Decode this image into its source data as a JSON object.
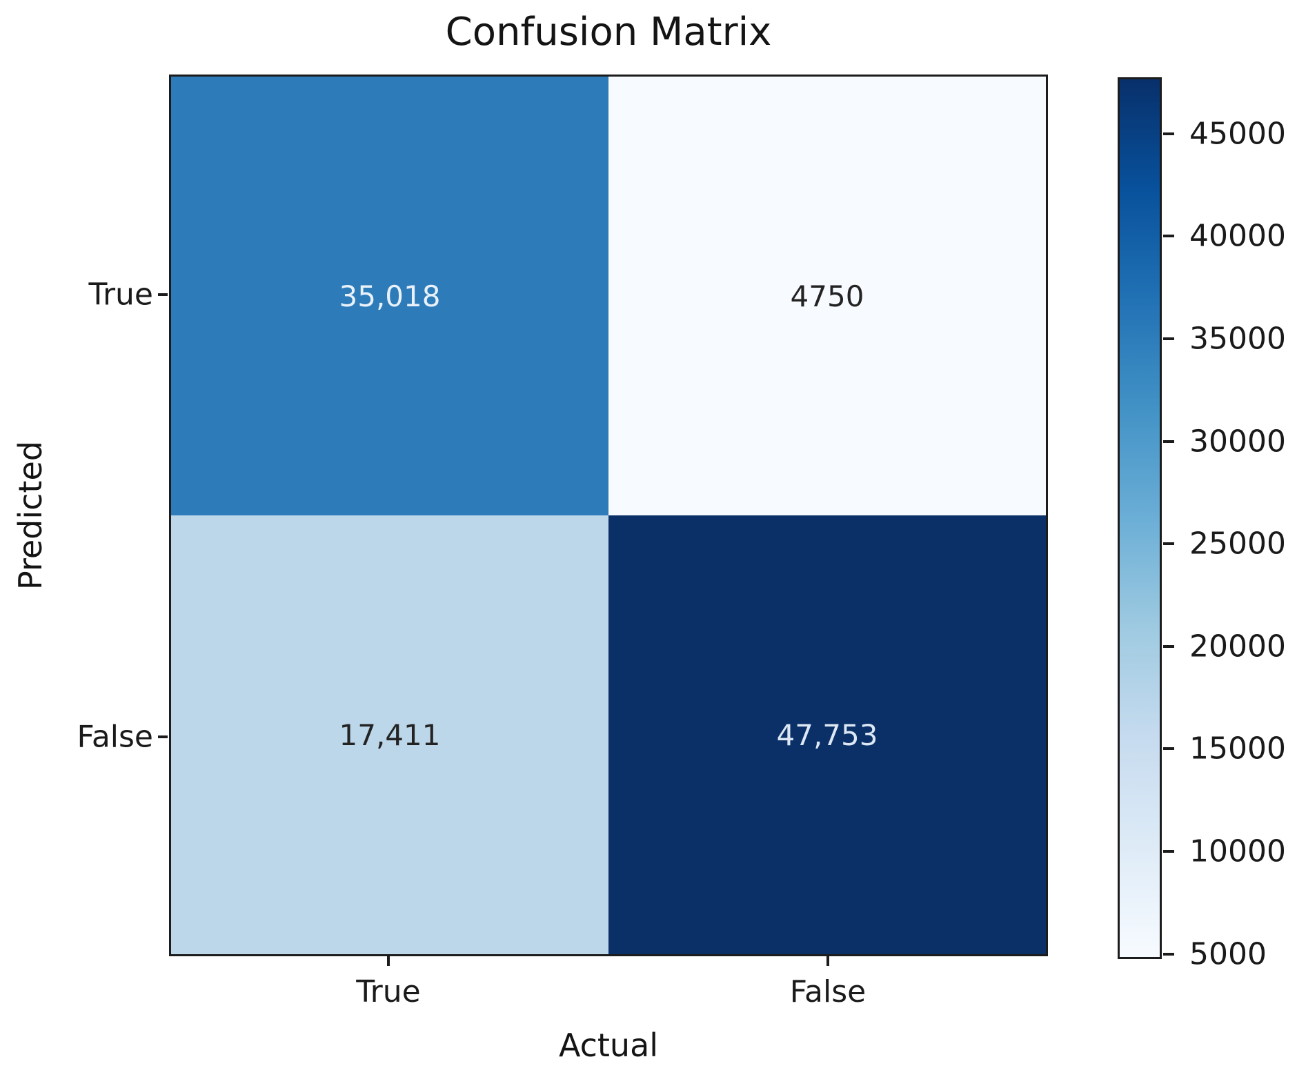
{
  "chart_data": {
    "type": "heatmap",
    "title": "Confusion Matrix",
    "xlabel": "Actual",
    "ylabel": "Predicted",
    "x_categories": [
      "True",
      "False"
    ],
    "y_categories": [
      "True",
      "False"
    ],
    "values": [
      [
        35018,
        4750
      ],
      [
        17411,
        47753
      ]
    ],
    "cell_labels": [
      [
        "35,018",
        "4750"
      ],
      [
        "17,411",
        "47,753"
      ]
    ],
    "cell_colors": [
      [
        "#2e7bb9",
        "#f7fafe"
      ],
      [
        "#bcd6ea",
        "#0b3068"
      ]
    ],
    "cell_text_colors": [
      [
        "#e9f1fa",
        "#232323"
      ],
      [
        "#232323",
        "#dde8f4"
      ]
    ],
    "colormap": "Blues",
    "grid": false,
    "legend_position": "right-colorbar",
    "colorbar": {
      "vmin": 4750,
      "vmax": 47753,
      "ticks": [
        45000,
        40000,
        35000,
        30000,
        25000,
        20000,
        15000,
        10000,
        5000
      ]
    }
  }
}
